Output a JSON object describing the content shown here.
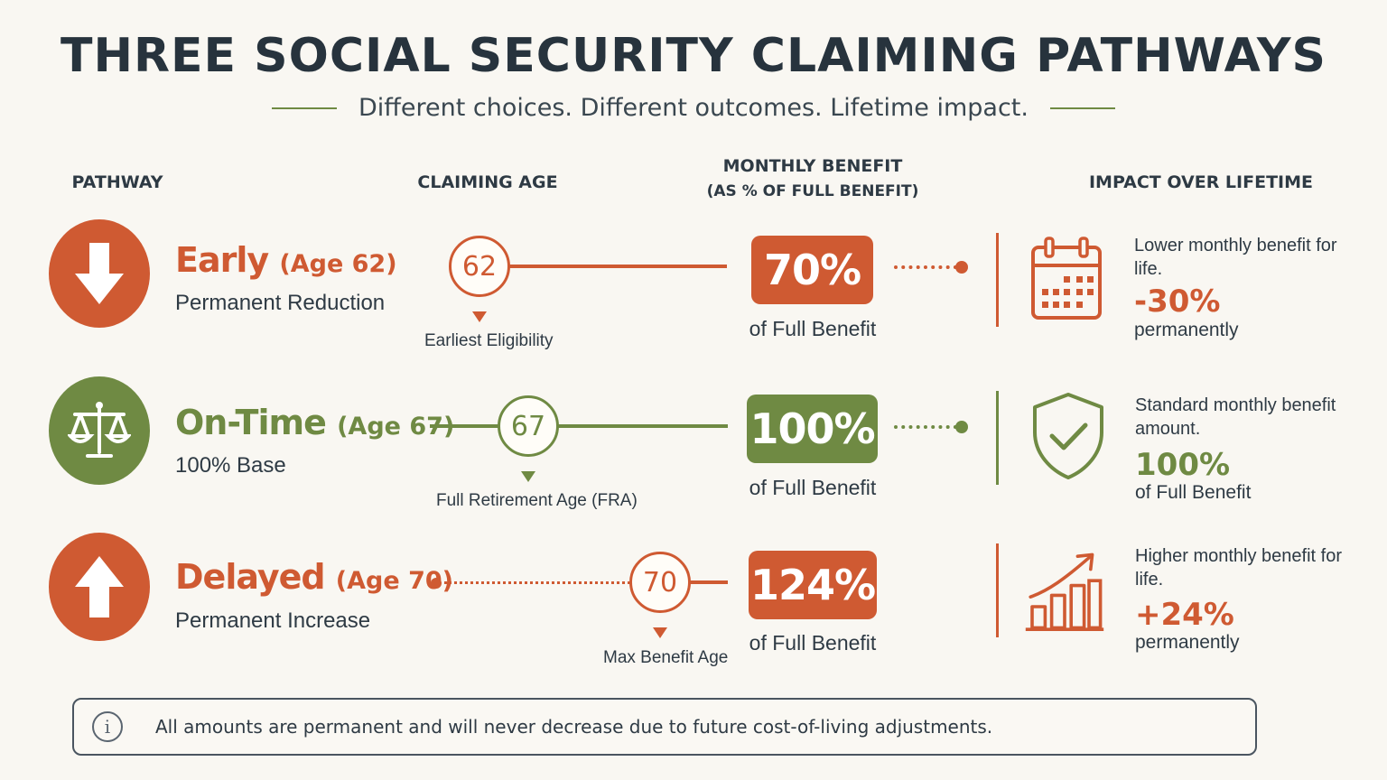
{
  "title": "THREE SOCIAL SECURITY CLAIMING PATHWAYS",
  "subtitle": "Different choices. Different outcomes. Lifetime impact.",
  "colors": {
    "orange": "#cf5a32",
    "green": "#6f8a43",
    "dark": "#27333d"
  },
  "headers": {
    "pathway": "PATHWAY",
    "claiming_age": "CLAIMING AGE",
    "monthly_benefit_1": "MONTHLY BENEFIT",
    "monthly_benefit_2": "(AS % OF FULL BENEFIT)",
    "impact": "IMPACT OVER LIFETIME"
  },
  "rows": [
    {
      "icon": "arrow-down-icon",
      "name": "Early",
      "age_label": "(Age 62)",
      "subtitle": "Permanent Reduction",
      "age": "62",
      "age_caption": "Earliest Eligibility",
      "percent": "70%",
      "percent_caption": "of Full Benefit",
      "impact_icon": "calendar-icon",
      "impact_text": "Lower monthly benefit for life.",
      "impact_value": "-30%",
      "impact_tail": "permanently"
    },
    {
      "icon": "scales-icon",
      "name": "On-Time",
      "age_label": "(Age 67)",
      "subtitle": "100% Base",
      "age": "67",
      "age_caption": "Full Retirement Age (FRA)",
      "percent": "100%",
      "percent_caption": "of Full Benefit",
      "impact_icon": "shield-check-icon",
      "impact_text": "Standard monthly benefit amount.",
      "impact_value": "100%",
      "impact_tail": "of Full Benefit"
    },
    {
      "icon": "arrow-up-icon",
      "name": "Delayed",
      "age_label": "(Age 70)",
      "subtitle": "Permanent Increase",
      "age": "70",
      "age_caption": "Max Benefit Age",
      "percent": "124%",
      "percent_caption": "of Full Benefit",
      "impact_icon": "growth-chart-icon",
      "impact_text": "Higher monthly benefit for life.",
      "impact_value": "+24%",
      "impact_tail": "permanently"
    }
  ],
  "note": {
    "icon": "info-icon",
    "text": "All amounts are permanent and will never decrease due to future cost-of-living adjustments."
  }
}
